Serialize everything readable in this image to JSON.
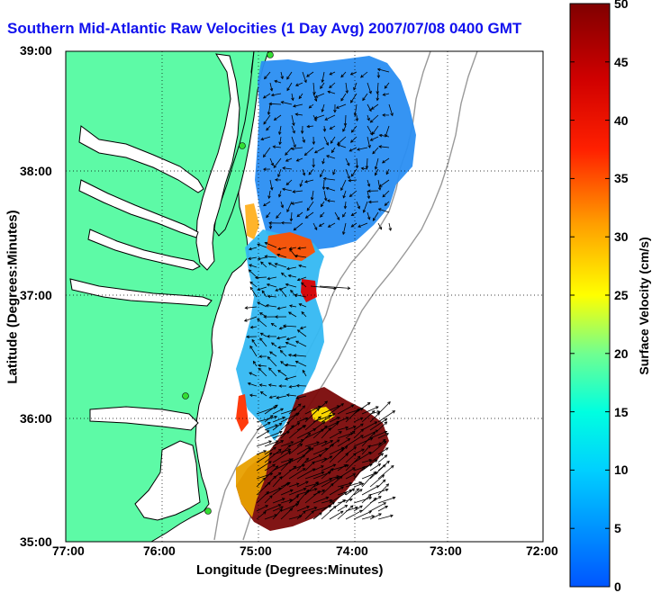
{
  "title": "Southern Mid-Atlantic Raw Velocities (1 Day Avg) 2007/07/08 0400 GMT",
  "xlabel": "Longitude (Degrees:Minutes)",
  "ylabel": "Latitude (Degrees:Minutes)",
  "colorbar_label": "Surface Velocity (cm/s)",
  "x_ticks": [
    "77:00",
    "76:00",
    "75:00",
    "74:00",
    "73:00",
    "72:00"
  ],
  "y_ticks": [
    "39:00",
    "38:00",
    "37:00",
    "36:00",
    "35:00"
  ],
  "colorbar_ticks": [
    "50",
    "45",
    "40",
    "35",
    "30",
    "25",
    "20",
    "15",
    "10",
    "5",
    "0"
  ],
  "colors": {
    "land": "#5dfaa6",
    "water": "#ffffff",
    "coastline": "#000000",
    "bathymetry": "#999999",
    "station": "#33dd33",
    "title": "#1111ee"
  }
}
